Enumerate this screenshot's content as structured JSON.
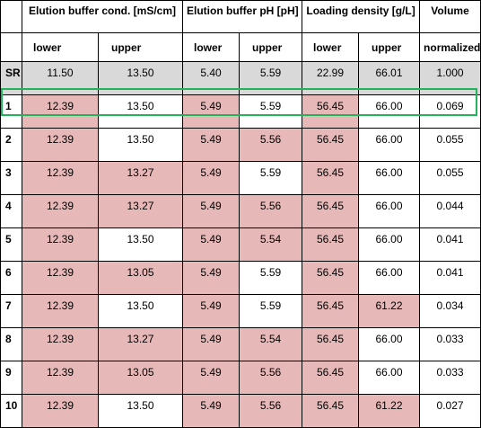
{
  "header": {
    "groups": [
      "Elution buffer cond. [mS/cm]",
      "Elution buffer pH [pH]",
      "Loading density [g/L]",
      "Volume"
    ],
    "subs": [
      "lower",
      "upper",
      "lower",
      "upper",
      "lower",
      "upper",
      "normalized"
    ]
  },
  "colors": {
    "highlight": "#e6b8b7",
    "reference": "#d9d9d9",
    "selection": "#22b45a"
  },
  "rows": [
    {
      "label": "SR",
      "v": [
        "11.50",
        "13.50",
        "5.40",
        "5.59",
        "22.99",
        "66.01",
        "1.000"
      ]
    },
    {
      "label": "1",
      "v": [
        "12.39",
        "13.50",
        "5.49",
        "5.59",
        "56.45",
        "66.00",
        "0.069"
      ]
    },
    {
      "label": "2",
      "v": [
        "12.39",
        "13.50",
        "5.49",
        "5.56",
        "56.45",
        "66.00",
        "0.055"
      ]
    },
    {
      "label": "3",
      "v": [
        "12.39",
        "13.27",
        "5.49",
        "5.59",
        "56.45",
        "66.00",
        "0.055"
      ]
    },
    {
      "label": "4",
      "v": [
        "12.39",
        "13.27",
        "5.49",
        "5.56",
        "56.45",
        "66.00",
        "0.044"
      ]
    },
    {
      "label": "5",
      "v": [
        "12.39",
        "13.50",
        "5.49",
        "5.54",
        "56.45",
        "66.00",
        "0.041"
      ]
    },
    {
      "label": "6",
      "v": [
        "12.39",
        "13.05",
        "5.49",
        "5.59",
        "56.45",
        "66.00",
        "0.041"
      ]
    },
    {
      "label": "7",
      "v": [
        "12.39",
        "13.50",
        "5.49",
        "5.59",
        "56.45",
        "61.22",
        "0.034"
      ]
    },
    {
      "label": "8",
      "v": [
        "12.39",
        "13.27",
        "5.49",
        "5.54",
        "56.45",
        "66.00",
        "0.033"
      ]
    },
    {
      "label": "9",
      "v": [
        "12.39",
        "13.05",
        "5.49",
        "5.56",
        "56.45",
        "66.00",
        "0.033"
      ]
    },
    {
      "label": "10",
      "v": [
        "12.39",
        "13.50",
        "5.49",
        "5.56",
        "56.45",
        "61.22",
        "0.027"
      ]
    }
  ]
}
